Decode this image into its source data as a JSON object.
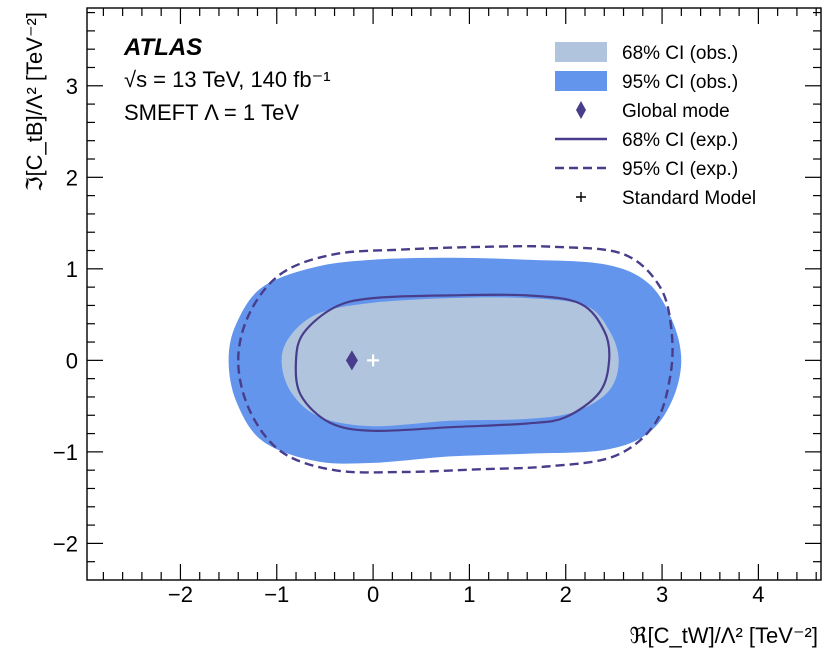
{
  "chart_data": {
    "type": "contour",
    "experiment": "ATLAS",
    "energy_lumi": "√s = 13 TeV, 140 fb⁻¹",
    "model_label": "SMEFT Λ = 1 TeV",
    "xlabel": "ℜ[C_tW]/Λ² [TeV⁻²]",
    "ylabel": "ℑ[C_tB]/Λ² [TeV⁻²]",
    "xlim": [
      -2.97,
      4.65
    ],
    "ylim": [
      -2.4,
      3.85
    ],
    "xticks": [
      -2,
      -1,
      0,
      1,
      2,
      3,
      4
    ],
    "yticks": [
      -2,
      -1,
      0,
      1,
      2,
      3
    ],
    "xtick_labels": [
      "−2",
      "−1",
      "0",
      "1",
      "2",
      "3",
      "4"
    ],
    "ytick_labels": [
      "−2",
      "−1",
      "0",
      "1",
      "2",
      "3"
    ],
    "legend": [
      {
        "label": "68% CI (obs.)",
        "kind": "fill",
        "color": "#b0c4de"
      },
      {
        "label": "95% CI (obs.)",
        "kind": "fill",
        "color": "#6495ed"
      },
      {
        "label": "Global mode",
        "kind": "diamond",
        "color": "#483d8b"
      },
      {
        "label": "68% CI (exp.)",
        "kind": "line",
        "color": "#483d8b"
      },
      {
        "label": "95% CI (exp.)",
        "kind": "dashed",
        "color": "#483d8b"
      },
      {
        "label": "Standard Model",
        "kind": "plus",
        "color": "#000000"
      }
    ],
    "global_mode": {
      "x": -0.22,
      "y": 0.0
    },
    "standard_model": {
      "x": 0.0,
      "y": 0.0
    },
    "contours": {
      "obs95": [
        [
          -1.5,
          0
        ],
        [
          -1.42,
          0.4
        ],
        [
          -1.15,
          0.8
        ],
        [
          -0.6,
          1.02
        ],
        [
          0,
          1.1
        ],
        [
          0.8,
          1.12
        ],
        [
          1.6,
          1.1
        ],
        [
          2.4,
          1.05
        ],
        [
          2.85,
          0.85
        ],
        [
          3.1,
          0.45
        ],
        [
          3.2,
          0
        ],
        [
          3.1,
          -0.45
        ],
        [
          2.85,
          -0.8
        ],
        [
          2.4,
          -0.98
        ],
        [
          1.6,
          -1.02
        ],
        [
          0.8,
          -1.05
        ],
        [
          0,
          -1.12
        ],
        [
          -0.6,
          -1.1
        ],
        [
          -1.15,
          -0.88
        ],
        [
          -1.42,
          -0.45
        ]
      ],
      "obs68": [
        [
          -0.95,
          0
        ],
        [
          -0.85,
          0.28
        ],
        [
          -0.55,
          0.52
        ],
        [
          0,
          0.63
        ],
        [
          0.8,
          0.68
        ],
        [
          1.6,
          0.68
        ],
        [
          2.2,
          0.6
        ],
        [
          2.45,
          0.33
        ],
        [
          2.55,
          0
        ],
        [
          2.45,
          -0.33
        ],
        [
          2.1,
          -0.56
        ],
        [
          1.6,
          -0.64
        ],
        [
          0.8,
          -0.66
        ],
        [
          0,
          -0.72
        ],
        [
          -0.55,
          -0.62
        ],
        [
          -0.85,
          -0.35
        ]
      ],
      "exp68": [
        [
          -0.8,
          0
        ],
        [
          -0.72,
          0.3
        ],
        [
          -0.4,
          0.58
        ],
        [
          0,
          0.68
        ],
        [
          0.8,
          0.71
        ],
        [
          1.6,
          0.71
        ],
        [
          2.15,
          0.62
        ],
        [
          2.4,
          0.32
        ],
        [
          2.45,
          0
        ],
        [
          2.35,
          -0.35
        ],
        [
          2,
          -0.62
        ],
        [
          1.6,
          -0.69
        ],
        [
          0.8,
          -0.73
        ],
        [
          0,
          -0.77
        ],
        [
          -0.45,
          -0.68
        ],
        [
          -0.75,
          -0.38
        ]
      ],
      "exp95": [
        [
          -1.4,
          0
        ],
        [
          -1.28,
          0.52
        ],
        [
          -0.95,
          0.95
        ],
        [
          -0.4,
          1.16
        ],
        [
          0.3,
          1.21
        ],
        [
          1.1,
          1.24
        ],
        [
          1.9,
          1.24
        ],
        [
          2.6,
          1.16
        ],
        [
          2.98,
          0.8
        ],
        [
          3.1,
          0.3
        ],
        [
          3.08,
          -0.2
        ],
        [
          2.92,
          -0.7
        ],
        [
          2.5,
          -1.05
        ],
        [
          1.8,
          -1.16
        ],
        [
          1.1,
          -1.19
        ],
        [
          0.3,
          -1.22
        ],
        [
          -0.4,
          -1.2
        ],
        [
          -0.95,
          -1.0
        ],
        [
          -1.28,
          -0.55
        ]
      ]
    }
  }
}
